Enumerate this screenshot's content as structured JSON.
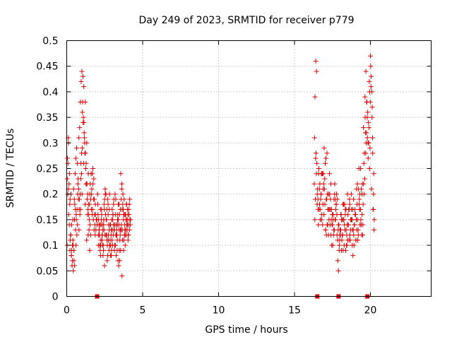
{
  "chart_data": {
    "type": "scatter",
    "title": "Day 249 of 2023, SRMTID for receiver p779",
    "xlabel": "GPS time / hours",
    "ylabel": "SRMTID / TECUs",
    "xlim": [
      0,
      24
    ],
    "ylim": [
      0,
      0.5
    ],
    "x_ticks": [
      0,
      5,
      10,
      15,
      20
    ],
    "x_tick_labels": [
      "0",
      "5",
      "10",
      "15",
      "20"
    ],
    "y_ticks": [
      0,
      0.05,
      0.1,
      0.15,
      0.2,
      0.25,
      0.3,
      0.35,
      0.4,
      0.45,
      0.5
    ],
    "y_tick_labels": [
      "0",
      "0.05",
      "0.1",
      "0.15",
      "0.2",
      "0.25",
      "0.3",
      "0.35",
      "0.4",
      "0.45",
      "0.5"
    ],
    "grid": true,
    "marker": "plus",
    "color": "#dd0000",
    "gap_markers_x": [
      2.0,
      16.5,
      17.9,
      19.8
    ],
    "series": [
      {
        "name": "SRMTID",
        "x": [
          0.05,
          0.1,
          0.15,
          0.2,
          0.25,
          0.3,
          0.35,
          0.4,
          0.45,
          0.5,
          0.55,
          0.6,
          0.65,
          0.7,
          0.75,
          0.8,
          0.85,
          0.9,
          0.95,
          1.0,
          1.05,
          1.1,
          1.15,
          1.2,
          1.25,
          1.3,
          1.35,
          1.4,
          1.45,
          1.5,
          1.55,
          1.6,
          1.65,
          1.7,
          1.75,
          1.8,
          1.85,
          1.9,
          1.95,
          2.0,
          0.08,
          0.18,
          0.28,
          0.38,
          0.48,
          0.58,
          0.68,
          0.78,
          0.88,
          0.98,
          1.08,
          1.18,
          1.28,
          1.38,
          1.48,
          1.58,
          1.68,
          1.78,
          1.88,
          1.98,
          0.12,
          0.22,
          0.32,
          0.42,
          0.52,
          0.62,
          0.72,
          0.82,
          0.92,
          1.02,
          1.12,
          1.22,
          1.32,
          1.42,
          1.52,
          1.62,
          1.72,
          1.82,
          1.92,
          0.03,
          0.13,
          0.23,
          0.33,
          0.43,
          0.53,
          0.63,
          0.73,
          0.83,
          0.93,
          1.03,
          1.13,
          1.23,
          1.33,
          1.43,
          1.53,
          1.63,
          1.73,
          1.83,
          0.07,
          0.17,
          0.27,
          0.37,
          0.47,
          0.57,
          0.67,
          0.77,
          0.87,
          0.97,
          1.07,
          1.17,
          1.27,
          1.37,
          1.47,
          1.57,
          1.67,
          1.77,
          1.87,
          0.02,
          0.11,
          0.21,
          0.31,
          0.41,
          0.51,
          0.61,
          0.71,
          0.81,
          0.91,
          1.01,
          1.11,
          1.21,
          1.31,
          1.41,
          1.51,
          2.05,
          2.1,
          2.15,
          2.2,
          2.25,
          2.3,
          2.35,
          2.4,
          2.45,
          2.5,
          2.55,
          2.6,
          2.65,
          2.7,
          2.75,
          2.8,
          2.85,
          2.9,
          2.95,
          3.0,
          3.05,
          3.1,
          3.15,
          3.2,
          3.25,
          3.3,
          3.35,
          3.4,
          3.45,
          3.5,
          3.55,
          3.6,
          3.65,
          3.7,
          3.75,
          3.8,
          3.85,
          3.9,
          3.95,
          4.0,
          4.05,
          4.1,
          4.15,
          4.2,
          2.08,
          2.18,
          2.28,
          2.38,
          2.48,
          2.58,
          2.68,
          2.78,
          2.88,
          2.98,
          3.08,
          3.18,
          3.28,
          3.38,
          3.48,
          3.58,
          3.68,
          3.78,
          3.88,
          3.98,
          4.08,
          4.18,
          2.12,
          2.22,
          2.32,
          2.42,
          2.52,
          2.62,
          2.72,
          2.82,
          2.92,
          3.02,
          3.12,
          3.22,
          3.32,
          3.42,
          3.52,
          3.62,
          3.72,
          3.82,
          3.92,
          4.02,
          4.12,
          2.03,
          2.13,
          2.23,
          2.33,
          2.43,
          2.53,
          2.63,
          2.73,
          2.83,
          2.93,
          3.03,
          3.13,
          3.23,
          3.33,
          3.43,
          3.53,
          3.63,
          3.73,
          3.83,
          3.93,
          4.03,
          4.13,
          2.06,
          2.16,
          2.26,
          2.36,
          2.46,
          2.56,
          2.66,
          2.76,
          2.86,
          2.96,
          3.06,
          3.16,
          3.26,
          3.36,
          3.46,
          3.56,
          3.66,
          3.76,
          3.86,
          3.96,
          4.06,
          4.16,
          2.09,
          2.19,
          2.29,
          2.39,
          2.49,
          2.59,
          2.69,
          2.79,
          2.89,
          2.99,
          3.09,
          3.19,
          3.29,
          3.39,
          3.49,
          3.59,
          3.69,
          3.79,
          3.89,
          3.99,
          4.09,
          2.14,
          2.24,
          2.34,
          2.44,
          2.54,
          2.64,
          2.74,
          2.84,
          2.94,
          3.04,
          3.14,
          3.24,
          3.34,
          3.44,
          3.54,
          3.64,
          3.74,
          3.84,
          3.94,
          4.04,
          16.3,
          16.35,
          16.4,
          16.45,
          16.5,
          16.55,
          16.6,
          16.65,
          16.7,
          16.75,
          16.8,
          16.85,
          16.9,
          16.95,
          17.0,
          17.05,
          17.1,
          17.15,
          17.2,
          17.25,
          17.3,
          17.35,
          17.4,
          17.45,
          17.5,
          17.55,
          17.6,
          17.65,
          17.7,
          17.75,
          17.8,
          17.85,
          17.9,
          17.95,
          18.0,
          18.05,
          18.1,
          18.15,
          18.2,
          18.25,
          18.3,
          18.35,
          18.4,
          18.45,
          18.5,
          18.55,
          18.6,
          18.65,
          18.7,
          18.75,
          18.8,
          18.85,
          18.9,
          18.95,
          19.0,
          19.05,
          19.1,
          19.15,
          19.2,
          19.25,
          19.3,
          19.35,
          19.4,
          19.45,
          19.5,
          19.55,
          19.6,
          19.65,
          19.7,
          19.75,
          19.8,
          19.85,
          19.9,
          19.95,
          20.0,
          20.05,
          20.1,
          20.15,
          20.2,
          20.25,
          16.32,
          16.42,
          16.52,
          16.62,
          16.72,
          16.82,
          16.92,
          17.02,
          17.12,
          17.22,
          17.32,
          17.42,
          17.52,
          17.62,
          17.72,
          17.82,
          17.92,
          18.02,
          18.12,
          18.22,
          18.32,
          18.42,
          18.52,
          18.62,
          18.72,
          18.82,
          18.92,
          19.02,
          19.12,
          19.22,
          19.32,
          19.42,
          19.52,
          19.62,
          19.72,
          19.82,
          19.92,
          20.02,
          20.12,
          20.22,
          16.37,
          16.47,
          16.57,
          16.67,
          16.77,
          16.87,
          16.97,
          17.07,
          17.17,
          17.27,
          17.37,
          17.47,
          17.57,
          17.67,
          17.77,
          17.87,
          17.97,
          18.07,
          18.17,
          18.27,
          18.37,
          18.47,
          18.57,
          18.67,
          18.77,
          18.87,
          18.97,
          19.07,
          19.17,
          19.27,
          19.37,
          19.47,
          19.57,
          19.67,
          19.77,
          19.87,
          19.97,
          20.07,
          20.17,
          16.34,
          16.44,
          16.54,
          16.64,
          16.74,
          16.84,
          16.94,
          17.04,
          17.14,
          17.24,
          17.34,
          17.44,
          17.54,
          17.64,
          17.74,
          17.84,
          17.94,
          18.04,
          18.14,
          18.24,
          18.34,
          18.44,
          18.54,
          18.64,
          18.74,
          18.84,
          18.94,
          19.04,
          19.14,
          19.24,
          19.34,
          19.44,
          19.54,
          19.64,
          19.74,
          19.84,
          19.94,
          20.04,
          20.14,
          20.24,
          16.39,
          16.49,
          16.59,
          16.69,
          16.79,
          16.89,
          16.99,
          17.09,
          17.19,
          17.29,
          17.39,
          17.49,
          17.59,
          17.69,
          17.79,
          17.89,
          17.99,
          18.09,
          18.19,
          18.29,
          18.39,
          18.49,
          18.59,
          18.69,
          18.79,
          18.89,
          18.99,
          19.09,
          19.19,
          19.29,
          19.39,
          19.49,
          19.59,
          19.69,
          19.79,
          19.89,
          19.99,
          20.09,
          20.19
        ],
        "y": [
          0.27,
          0.31,
          0.22,
          0.18,
          0.12,
          0.08,
          0.06,
          0.15,
          0.21,
          0.19,
          0.24,
          0.27,
          0.29,
          0.26,
          0.23,
          0.31,
          0.33,
          0.38,
          0.42,
          0.44,
          0.38,
          0.35,
          0.32,
          0.28,
          0.25,
          0.22,
          0.19,
          0.17,
          0.16,
          0.18,
          0.22,
          0.24,
          0.21,
          0.17,
          0.15,
          0.13,
          0.14,
          0.16,
          0.15,
          0.14,
          0.26,
          0.24,
          0.2,
          0.1,
          0.07,
          0.13,
          0.17,
          0.21,
          0.2,
          0.28,
          0.34,
          0.3,
          0.26,
          0.2,
          0.15,
          0.19,
          0.24,
          0.23,
          0.18,
          0.15,
          0.3,
          0.19,
          0.14,
          0.1,
          0.06,
          0.16,
          0.2,
          0.17,
          0.23,
          0.29,
          0.41,
          0.38,
          0.3,
          0.24,
          0.2,
          0.17,
          0.25,
          0.19,
          0.13,
          0.23,
          0.16,
          0.11,
          0.09,
          0.05,
          0.18,
          0.15,
          0.22,
          0.19,
          0.26,
          0.36,
          0.34,
          0.28,
          0.22,
          0.18,
          0.14,
          0.2,
          0.22,
          0.16,
          0.2,
          0.14,
          0.12,
          0.07,
          0.09,
          0.17,
          0.12,
          0.19,
          0.16,
          0.24,
          0.43,
          0.31,
          0.22,
          0.16,
          0.13,
          0.12,
          0.16,
          0.19,
          0.12,
          0.1,
          0.21,
          0.09,
          0.08,
          0.11,
          0.15,
          0.1,
          0.14,
          0.13,
          0.17,
          0.2,
          0.26,
          0.18,
          0.11,
          0.12,
          0.09,
          0.18,
          0.15,
          0.12,
          0.09,
          0.11,
          0.16,
          0.14,
          0.1,
          0.13,
          0.19,
          0.2,
          0.15,
          0.11,
          0.08,
          0.12,
          0.17,
          0.14,
          0.1,
          0.09,
          0.13,
          0.16,
          0.19,
          0.14,
          0.1,
          0.08,
          0.12,
          0.15,
          0.18,
          0.13,
          0.11,
          0.09,
          0.14,
          0.17,
          0.2,
          0.16,
          0.12,
          0.1,
          0.15,
          0.18,
          0.14,
          0.12,
          0.16,
          0.19,
          0.15,
          0.12,
          0.1,
          0.15,
          0.13,
          0.17,
          0.2,
          0.1,
          0.09,
          0.14,
          0.11,
          0.18,
          0.2,
          0.12,
          0.07,
          0.16,
          0.13,
          0.11,
          0.19,
          0.16,
          0.13,
          0.17,
          0.14,
          0.14,
          0.17,
          0.11,
          0.09,
          0.12,
          0.15,
          0.18,
          0.2,
          0.12,
          0.1,
          0.13,
          0.16,
          0.09,
          0.06,
          0.12,
          0.21,
          0.17,
          0.14,
          0.12,
          0.15,
          0.18,
          0.2,
          0.13,
          0.08,
          0.12,
          0.14,
          0.21,
          0.12,
          0.16,
          0.1,
          0.08,
          0.15,
          0.13,
          0.19,
          0.11,
          0.14,
          0.17,
          0.22,
          0.15,
          0.13,
          0.18,
          0.16,
          0.13,
          0.16,
          0.12,
          0.14,
          0.1,
          0.18,
          0.16,
          0.07,
          0.14,
          0.11,
          0.15,
          0.12,
          0.1,
          0.14,
          0.16,
          0.09,
          0.24,
          0.13,
          0.11,
          0.16,
          0.14,
          0.12,
          0.15,
          0.1,
          0.14,
          0.17,
          0.08,
          0.06,
          0.12,
          0.19,
          0.13,
          0.08,
          0.17,
          0.14,
          0.1,
          0.13,
          0.15,
          0.07,
          0.19,
          0.18,
          0.16,
          0.13,
          0.17,
          0.14,
          0.13,
          0.1,
          0.12,
          0.15,
          0.2,
          0.17,
          0.11,
          0.1,
          0.13,
          0.16,
          0.09,
          0.12,
          0.14,
          0.18,
          0.13,
          0.04,
          0.09,
          0.12,
          0.15,
          0.11,
          0.22,
          0.39,
          0.46,
          0.44,
          0.2,
          0.17,
          0.25,
          0.18,
          0.15,
          0.2,
          0.16,
          0.14,
          0.24,
          0.29,
          0.18,
          0.13,
          0.12,
          0.14,
          0.17,
          0.2,
          0.24,
          0.17,
          0.12,
          0.1,
          0.14,
          0.16,
          0.19,
          0.22,
          0.15,
          0.18,
          0.12,
          0.07,
          0.05,
          0.1,
          0.13,
          0.16,
          0.15,
          0.12,
          0.09,
          0.15,
          0.18,
          0.17,
          0.13,
          0.1,
          0.11,
          0.14,
          0.17,
          0.12,
          0.15,
          0.17,
          0.1,
          0.08,
          0.12,
          0.14,
          0.16,
          0.11,
          0.13,
          0.15,
          0.12,
          0.18,
          0.2,
          0.25,
          0.21,
          0.16,
          0.14,
          0.22,
          0.28,
          0.35,
          0.44,
          0.38,
          0.31,
          0.27,
          0.33,
          0.4,
          0.47,
          0.43,
          0.35,
          0.28,
          0.2,
          0.15,
          0.31,
          0.28,
          0.21,
          0.17,
          0.19,
          0.24,
          0.22,
          0.26,
          0.19,
          0.17,
          0.2,
          0.15,
          0.1,
          0.13,
          0.17,
          0.19,
          0.14,
          0.12,
          0.11,
          0.15,
          0.13,
          0.1,
          0.16,
          0.19,
          0.15,
          0.13,
          0.1,
          0.16,
          0.18,
          0.21,
          0.14,
          0.12,
          0.18,
          0.23,
          0.3,
          0.36,
          0.42,
          0.45,
          0.37,
          0.24,
          0.19,
          0.26,
          0.14,
          0.22,
          0.24,
          0.18,
          0.21,
          0.27,
          0.2,
          0.15,
          0.19,
          0.14,
          0.12,
          0.15,
          0.2,
          0.13,
          0.11,
          0.16,
          0.12,
          0.1,
          0.09,
          0.14,
          0.17,
          0.11,
          0.15,
          0.13,
          0.17,
          0.15,
          0.11,
          0.19,
          0.15,
          0.22,
          0.26,
          0.32,
          0.38,
          0.34,
          0.29,
          0.21,
          0.17,
          0.15,
          0.24,
          0.19,
          0.21,
          0.2,
          0.24,
          0.16,
          0.13,
          0.28,
          0.12,
          0.14,
          0.17,
          0.15,
          0.2,
          0.18,
          0.11,
          0.09,
          0.13,
          0.15,
          0.18,
          0.16,
          0.12,
          0.14,
          0.18,
          0.2,
          0.17,
          0.14,
          0.11,
          0.22,
          0.25,
          0.17,
          0.2,
          0.33,
          0.39,
          0.32,
          0.3,
          0.25,
          0.41,
          0.31,
          0.13,
          0.27,
          0.18,
          0.24,
          0.17,
          0.15,
          0.21,
          0.23,
          0.19,
          0.14,
          0.17,
          0.22,
          0.16,
          0.13,
          0.19,
          0.16,
          0.14,
          0.12,
          0.09,
          0.18,
          0.14,
          0.17,
          0.2,
          0.11,
          0.13,
          0.15,
          0.19,
          0.16,
          0.21,
          0.13,
          0.17,
          0.14,
          0.12,
          0.2,
          0.28,
          0.35,
          0.3,
          0.38,
          0.4,
          0.17
        ]
      }
    ]
  }
}
